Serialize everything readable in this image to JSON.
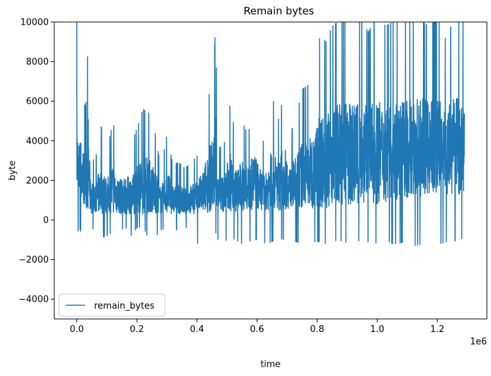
{
  "chart_data": {
    "type": "line",
    "title": "Remain bytes",
    "xlabel": "time",
    "ylabel": "byte",
    "x_offset_label": "1e6",
    "xlim": [
      -75000,
      1365000
    ],
    "ylim": [
      -5000,
      10000
    ],
    "x_ticks": [
      0.0,
      0.2,
      0.4,
      0.6,
      0.8,
      1.0,
      1.2
    ],
    "x_tick_labels": [
      "0.0",
      "0.2",
      "0.4",
      "0.6",
      "0.8",
      "1.0",
      "1.2"
    ],
    "y_ticks": [
      -4000,
      -2000,
      0,
      2000,
      4000,
      6000,
      8000,
      10000
    ],
    "y_tick_labels": [
      "−4000",
      "−2000",
      "0",
      "2000",
      "4000",
      "6000",
      "8000",
      "10000"
    ],
    "grid": false,
    "legend_position": "lower-left",
    "series": [
      {
        "name": "remain_bytes",
        "color": "#1f77b4",
        "envelope": {
          "x": [
            0,
            5000,
            10000,
            20000,
            30000,
            38000,
            45000,
            60000,
            80000,
            100000,
            120000,
            140000,
            160000,
            180000,
            200000,
            220000,
            240000,
            260000,
            280000,
            300000,
            320000,
            340000,
            360000,
            380000,
            400000,
            420000,
            440000,
            455000,
            462000,
            470000,
            490000,
            510000,
            530000,
            550000,
            570000,
            590000,
            610000,
            630000,
            650000,
            670000,
            690000,
            710000,
            730000,
            750000,
            770000,
            790000,
            810000,
            830000,
            850000,
            870000,
            890000,
            910000,
            930000,
            950000,
            970000,
            990000,
            1010000,
            1030000,
            1050000,
            1070000,
            1090000,
            1110000,
            1130000,
            1150000,
            1170000,
            1190000,
            1210000,
            1230000,
            1250000,
            1270000,
            1290000
          ],
          "upper": [
            10000,
            6200,
            7300,
            6200,
            5600,
            9300,
            3600,
            2800,
            4800,
            3400,
            5000,
            3500,
            3500,
            3800,
            4600,
            5600,
            5400,
            4500,
            2600,
            4300,
            2800,
            2900,
            2600,
            2900,
            3200,
            4200,
            6300,
            7300,
            10000,
            3600,
            3800,
            5800,
            4200,
            5000,
            4300,
            5800,
            4200,
            3800,
            6300,
            5000,
            6400,
            4300,
            5200,
            6600,
            6800,
            7600,
            9300,
            9000,
            9800,
            10000,
            10000,
            10000,
            10000,
            10000,
            9500,
            10000,
            10000,
            9800,
            10000,
            10000,
            10000,
            10000,
            10000,
            10000,
            9800,
            10000,
            10000,
            9000,
            10000,
            10000,
            10000
          ],
          "lower": [
            600,
            600,
            600,
            600,
            600,
            400,
            300,
            300,
            300,
            300,
            300,
            300,
            300,
            300,
            300,
            300,
            300,
            300,
            300,
            300,
            300,
            300,
            300,
            300,
            300,
            300,
            400,
            400,
            500,
            400,
            400,
            400,
            400,
            400,
            500,
            500,
            500,
            500,
            500,
            500,
            500,
            600,
            600,
            600,
            600,
            600,
            600,
            600,
            700,
            700,
            700,
            700,
            700,
            800,
            800,
            800,
            800,
            900,
            900,
            1000,
            1000,
            1100,
            1100,
            1200,
            1200,
            1300,
            1300,
            1300,
            1300,
            1300,
            1300
          ],
          "dips": [
            600,
            -700,
            -400,
            -1000,
            -1100,
            -1000,
            -700,
            -300,
            -900,
            -800,
            -600,
            -700,
            -300,
            -800,
            -400,
            -300,
            -1000,
            -900,
            -500,
            -400,
            -500,
            -500,
            -300,
            -700,
            -1200,
            -1100,
            -1000,
            -1200,
            -600,
            -1000,
            -1100,
            -900,
            -1000,
            -1200,
            -1100,
            -1000,
            -1000,
            -1200,
            -1100,
            -900,
            -1000,
            -1100,
            -1100,
            -1200,
            -1000,
            -1100,
            -1100,
            -1200,
            -1100,
            -1000,
            -1100,
            -1200,
            -1100,
            -1000,
            -1100,
            -1200,
            -1100,
            -1000,
            -1200,
            -1200,
            -1100,
            -1200,
            -1300,
            -1200,
            -1200,
            -1100,
            -1200,
            -1100,
            -1100,
            -1000,
            -900
          ]
        }
      }
    ]
  }
}
